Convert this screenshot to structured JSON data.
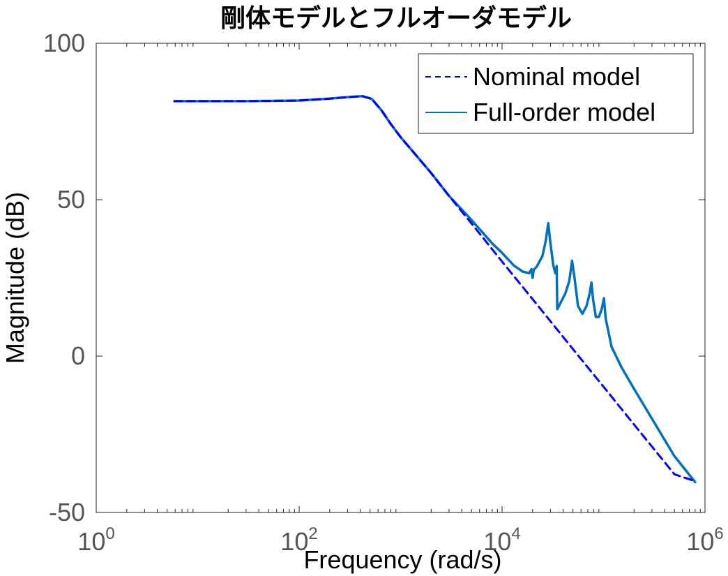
{
  "chart_data": {
    "type": "line",
    "title": "剛体モデルとフルオーダモデル",
    "xlabel": "Frequency  (rad/s)",
    "ylabel": "Magnitude (dB)",
    "xscale": "log",
    "xlim": [
      1,
      1000000
    ],
    "ylim": [
      -50,
      100
    ],
    "xticks": [
      1,
      100,
      10000,
      1000000
    ],
    "xtick_labels": [
      {
        "base": "10",
        "exp": "0"
      },
      {
        "base": "10",
        "exp": "2"
      },
      {
        "base": "10",
        "exp": "4"
      },
      {
        "base": "10",
        "exp": "6"
      }
    ],
    "yticks": [
      -50,
      0,
      50,
      100
    ],
    "ytick_labels": [
      "-50",
      "0",
      "50",
      "100"
    ],
    "grid": false,
    "legend_position": "top-right",
    "series": [
      {
        "name": "Nominal model",
        "style": "dashed",
        "color": "#0000ff",
        "points": [
          [
            5.9,
            81.5
          ],
          [
            30,
            81.5
          ],
          [
            100,
            81.7
          ],
          [
            200,
            82.3
          ],
          [
            300,
            82.8
          ],
          [
            420,
            83.1
          ],
          [
            520,
            82.2
          ],
          [
            650,
            78.5
          ],
          [
            800,
            74.2
          ],
          [
            1000,
            70.0
          ],
          [
            1500,
            63.3
          ],
          [
            2000,
            58.5
          ],
          [
            3000,
            51.2
          ],
          [
            5000,
            42.4
          ],
          [
            10000,
            30.2
          ],
          [
            20000,
            18.2
          ],
          [
            50000,
            2.2
          ],
          [
            100000,
            -9.8
          ],
          [
            200000,
            -21.9
          ],
          [
            500000,
            -37.8
          ],
          [
            800000,
            -40.0
          ]
        ]
      },
      {
        "name": "Full-order model",
        "style": "solid",
        "color": "#0072bd",
        "points": [
          [
            5.9,
            81.5
          ],
          [
            30,
            81.5
          ],
          [
            100,
            81.7
          ],
          [
            200,
            82.3
          ],
          [
            300,
            82.8
          ],
          [
            420,
            83.1
          ],
          [
            520,
            82.2
          ],
          [
            650,
            78.5
          ],
          [
            800,
            74.2
          ],
          [
            1000,
            70.0
          ],
          [
            1500,
            63.3
          ],
          [
            2000,
            58.5
          ],
          [
            3000,
            51.2
          ],
          [
            5000,
            43.5
          ],
          [
            8000,
            36.0
          ],
          [
            10000,
            33.0
          ],
          [
            13000,
            29.0
          ],
          [
            16000,
            27.0
          ],
          [
            18500,
            26.5
          ],
          [
            19500,
            27.8
          ],
          [
            20000,
            25.0
          ],
          [
            20500,
            27.6
          ],
          [
            22000,
            28.6
          ],
          [
            25000,
            32.0
          ],
          [
            27000,
            37.0
          ],
          [
            28500,
            42.5
          ],
          [
            30000,
            36.0
          ],
          [
            32000,
            29.0
          ],
          [
            33500,
            26.5
          ],
          [
            34500,
            28.8
          ],
          [
            35000,
            15.0
          ],
          [
            37000,
            16.5
          ],
          [
            42000,
            20.0
          ],
          [
            46000,
            24.0
          ],
          [
            49000,
            30.5
          ],
          [
            52000,
            24.5
          ],
          [
            56000,
            16.0
          ],
          [
            62000,
            13.5
          ],
          [
            68000,
            16.0
          ],
          [
            73000,
            20.0
          ],
          [
            76000,
            23.5
          ],
          [
            79000,
            18.0
          ],
          [
            84000,
            12.5
          ],
          [
            90000,
            12.5
          ],
          [
            96000,
            15.0
          ],
          [
            101000,
            18.5
          ],
          [
            105000,
            12.0
          ],
          [
            120000,
            3.0
          ],
          [
            150000,
            -3.5
          ],
          [
            200000,
            -10.5
          ],
          [
            300000,
            -20.0
          ],
          [
            500000,
            -32.0
          ],
          [
            800000,
            -40.3
          ]
        ]
      }
    ]
  }
}
